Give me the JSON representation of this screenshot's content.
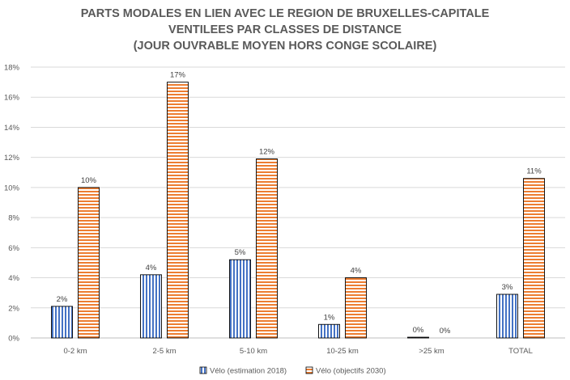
{
  "chart_data": {
    "type": "bar",
    "title": [
      "PARTS MODALES EN LIEN AVEC LE REGION DE BRUXELLES-CAPITALE",
      "VENTILEES PAR CLASSES DE DISTANCE",
      "(JOUR OUVRABLE MOYEN HORS CONGE SCOLAIRE)"
    ],
    "categories": [
      "0-2 km",
      "2-5 km",
      "5-10 km",
      "10-25 km",
      ">25 km",
      "TOTAL"
    ],
    "series": [
      {
        "name": "Vélo (estimation 2018)",
        "values": [
          2.1,
          4.2,
          5.2,
          0.9,
          0.05,
          2.9
        ],
        "data_labels": [
          "2%",
          "4%",
          "5%",
          "1%",
          "0%",
          "3%"
        ],
        "color": "#4472c4"
      },
      {
        "name": "Vélo (objectifs 2030)",
        "values": [
          10.0,
          17.0,
          11.9,
          4.0,
          0.0,
          10.6
        ],
        "data_labels": [
          "10%",
          "17%",
          "12%",
          "4%",
          "0%",
          "11%"
        ],
        "color": "#ed7d31"
      }
    ],
    "yticks": [
      "0%",
      "2%",
      "4%",
      "6%",
      "8%",
      "10%",
      "12%",
      "14%",
      "16%",
      "18%"
    ],
    "ylim": [
      0,
      18
    ],
    "grid": true,
    "legend_position": "bottom"
  }
}
